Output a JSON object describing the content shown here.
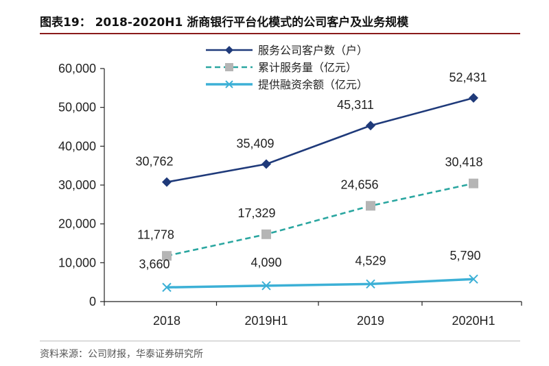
{
  "title": "图表19：  2018-2020H1 浙商银行平台化模式的公司客户及业务规模",
  "source": "资料来源：公司财报，华泰证券研究所",
  "chart_data": {
    "type": "line",
    "categories": [
      "2018",
      "2019H1",
      "2019",
      "2020H1"
    ],
    "ylim": [
      0,
      60000
    ],
    "yticks": [
      0,
      10000,
      20000,
      30000,
      40000,
      50000,
      60000
    ],
    "ytick_labels": [
      "0",
      "10,000",
      "20,000",
      "30,000",
      "40,000",
      "50,000",
      "60,000"
    ],
    "legend_position": "top-left",
    "grid": false,
    "series": [
      {
        "name": "服务公司客户数（户）",
        "values": [
          30762,
          35409,
          45311,
          52431
        ],
        "labels": [
          "30,762",
          "35,409",
          "45,311",
          "52,431"
        ],
        "color": "#1f3a7a",
        "line_style": "solid",
        "marker": "diamond"
      },
      {
        "name": "累计服务量（亿元）",
        "values": [
          11778,
          17329,
          24656,
          30418
        ],
        "labels": [
          "11,778",
          "17,329",
          "24,656",
          "30,418"
        ],
        "color": "#2aa6a0",
        "marker_color": "#b5b5b5",
        "line_style": "dashed",
        "marker": "square"
      },
      {
        "name": "提供融资余额（亿元）",
        "values": [
          3660,
          4090,
          4529,
          5790
        ],
        "labels": [
          "3,660",
          "4,090",
          "4,529",
          "5,790"
        ],
        "color": "#3cb0d6",
        "line_style": "solid",
        "marker": "x"
      }
    ]
  }
}
